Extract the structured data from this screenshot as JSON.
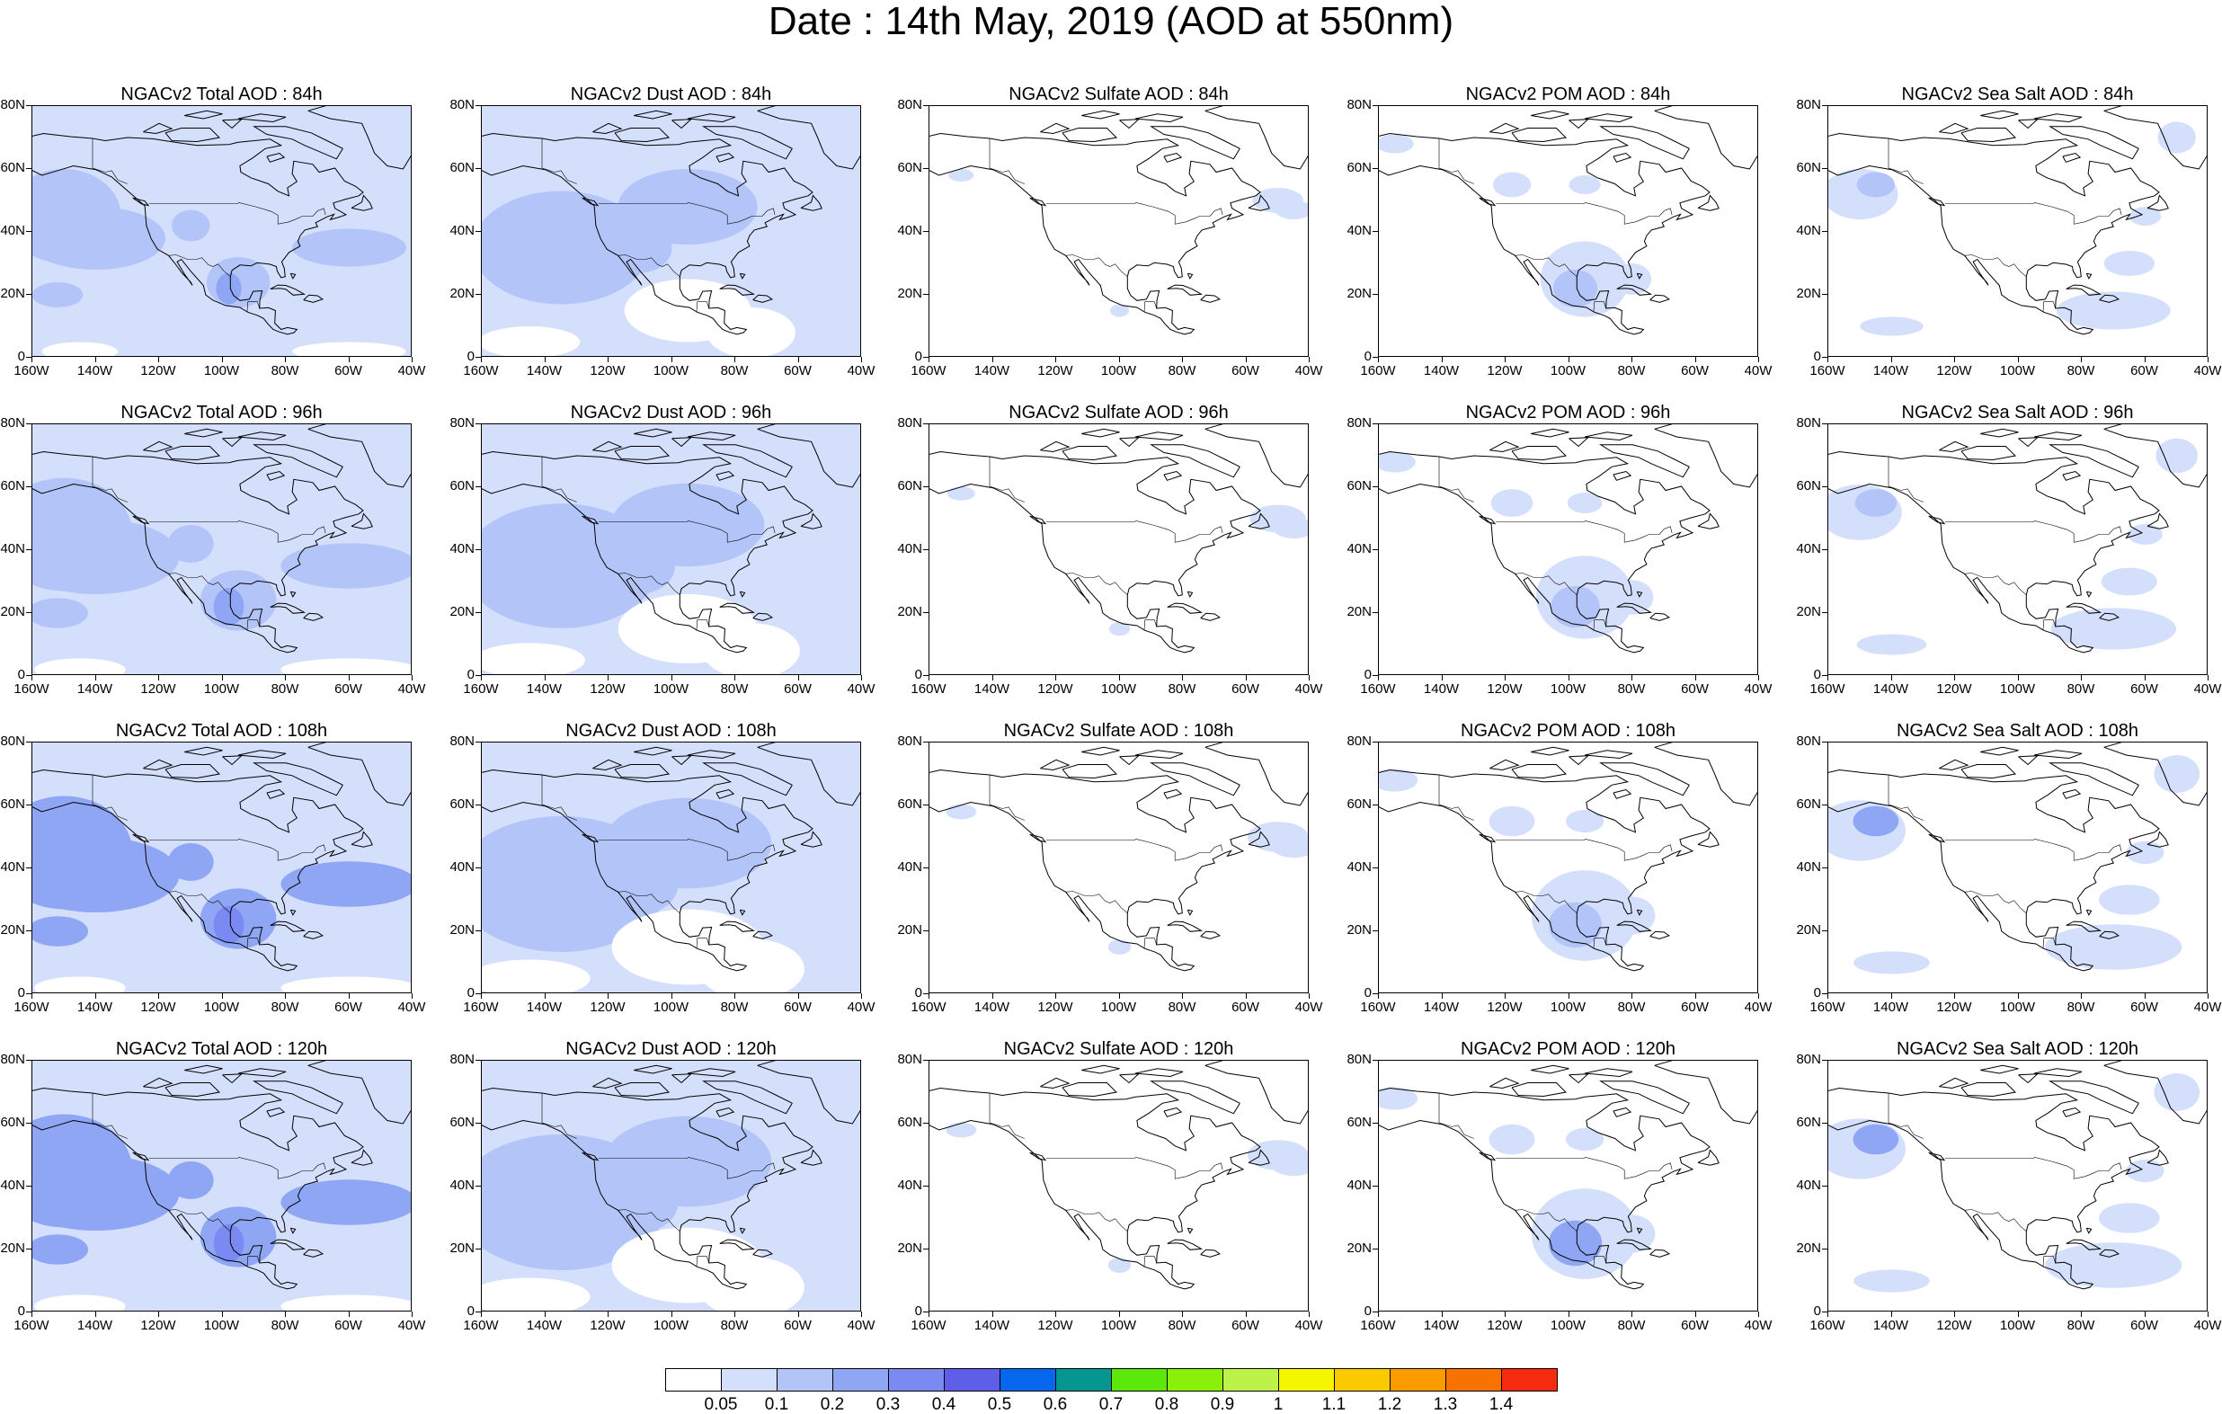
{
  "title": "Date : 14th May, 2019 (AOD at 550nm)",
  "y_ticks": [
    "80N",
    "60N",
    "40N",
    "20N",
    "0"
  ],
  "x_ticks": [
    "160W",
    "140W",
    "120W",
    "100W",
    "80W",
    "60W",
    "40W"
  ],
  "panels": [
    {
      "title": "NGACv2 Total AOD : 84h",
      "field": "total",
      "intensity": 1.0
    },
    {
      "title": "NGACv2 Dust AOD : 84h",
      "field": "dust",
      "intensity": 1.0
    },
    {
      "title": "NGACv2 Sulfate AOD : 84h",
      "field": "sulfate",
      "intensity": 1.0
    },
    {
      "title": "NGACv2 POM AOD : 84h",
      "field": "pom",
      "intensity": 1.0
    },
    {
      "title": "NGACv2 Sea Salt AOD : 84h",
      "field": "seasalt",
      "intensity": 1.0
    },
    {
      "title": "NGACv2 Total AOD : 96h",
      "field": "total",
      "intensity": 1.2
    },
    {
      "title": "NGACv2 Dust AOD : 96h",
      "field": "dust",
      "intensity": 1.1
    },
    {
      "title": "NGACv2 Sulfate AOD : 96h",
      "field": "sulfate",
      "intensity": 1.1
    },
    {
      "title": "NGACv2 POM AOD : 96h",
      "field": "pom",
      "intensity": 1.1
    },
    {
      "title": "NGACv2 Sea Salt AOD : 96h",
      "field": "seasalt",
      "intensity": 1.1
    },
    {
      "title": "NGACv2 Total AOD : 108h",
      "field": "total",
      "intensity": 1.3
    },
    {
      "title": "NGACv2 Dust AOD : 108h",
      "field": "dust",
      "intensity": 1.2
    },
    {
      "title": "NGACv2 Sulfate AOD : 108h",
      "field": "sulfate",
      "intensity": 1.2
    },
    {
      "title": "NGACv2 POM AOD : 108h",
      "field": "pom",
      "intensity": 1.2
    },
    {
      "title": "NGACv2 Sea Salt AOD : 108h",
      "field": "seasalt",
      "intensity": 1.3
    },
    {
      "title": "NGACv2 Total AOD : 120h",
      "field": "total",
      "intensity": 1.4
    },
    {
      "title": "NGACv2 Dust AOD : 120h",
      "field": "dust",
      "intensity": 1.2
    },
    {
      "title": "NGACv2 Sulfate AOD : 120h",
      "field": "sulfate",
      "intensity": 1.2
    },
    {
      "title": "NGACv2 POM AOD : 120h",
      "field": "pom",
      "intensity": 1.3
    },
    {
      "title": "NGACv2 Sea Salt  AOD : 120h",
      "field": "seasalt",
      "intensity": 1.4
    }
  ],
  "colorbar": {
    "colors": [
      "#ffffff",
      "#d4dffc",
      "#b3c5f8",
      "#8fa6f5",
      "#7a8af2",
      "#5f5ee8",
      "#0766ee",
      "#04968f",
      "#5be80a",
      "#8af00a",
      "#bdf24a",
      "#f5f500",
      "#fbc900",
      "#fb9b00",
      "#f87200",
      "#f52a0e"
    ],
    "labels": [
      "0.05",
      "0.1",
      "0.2",
      "0.3",
      "0.4",
      "0.5",
      "0.6",
      "0.7",
      "0.8",
      "0.9",
      "1",
      "1.1",
      "1.2",
      "1.3",
      "1.4"
    ]
  }
}
